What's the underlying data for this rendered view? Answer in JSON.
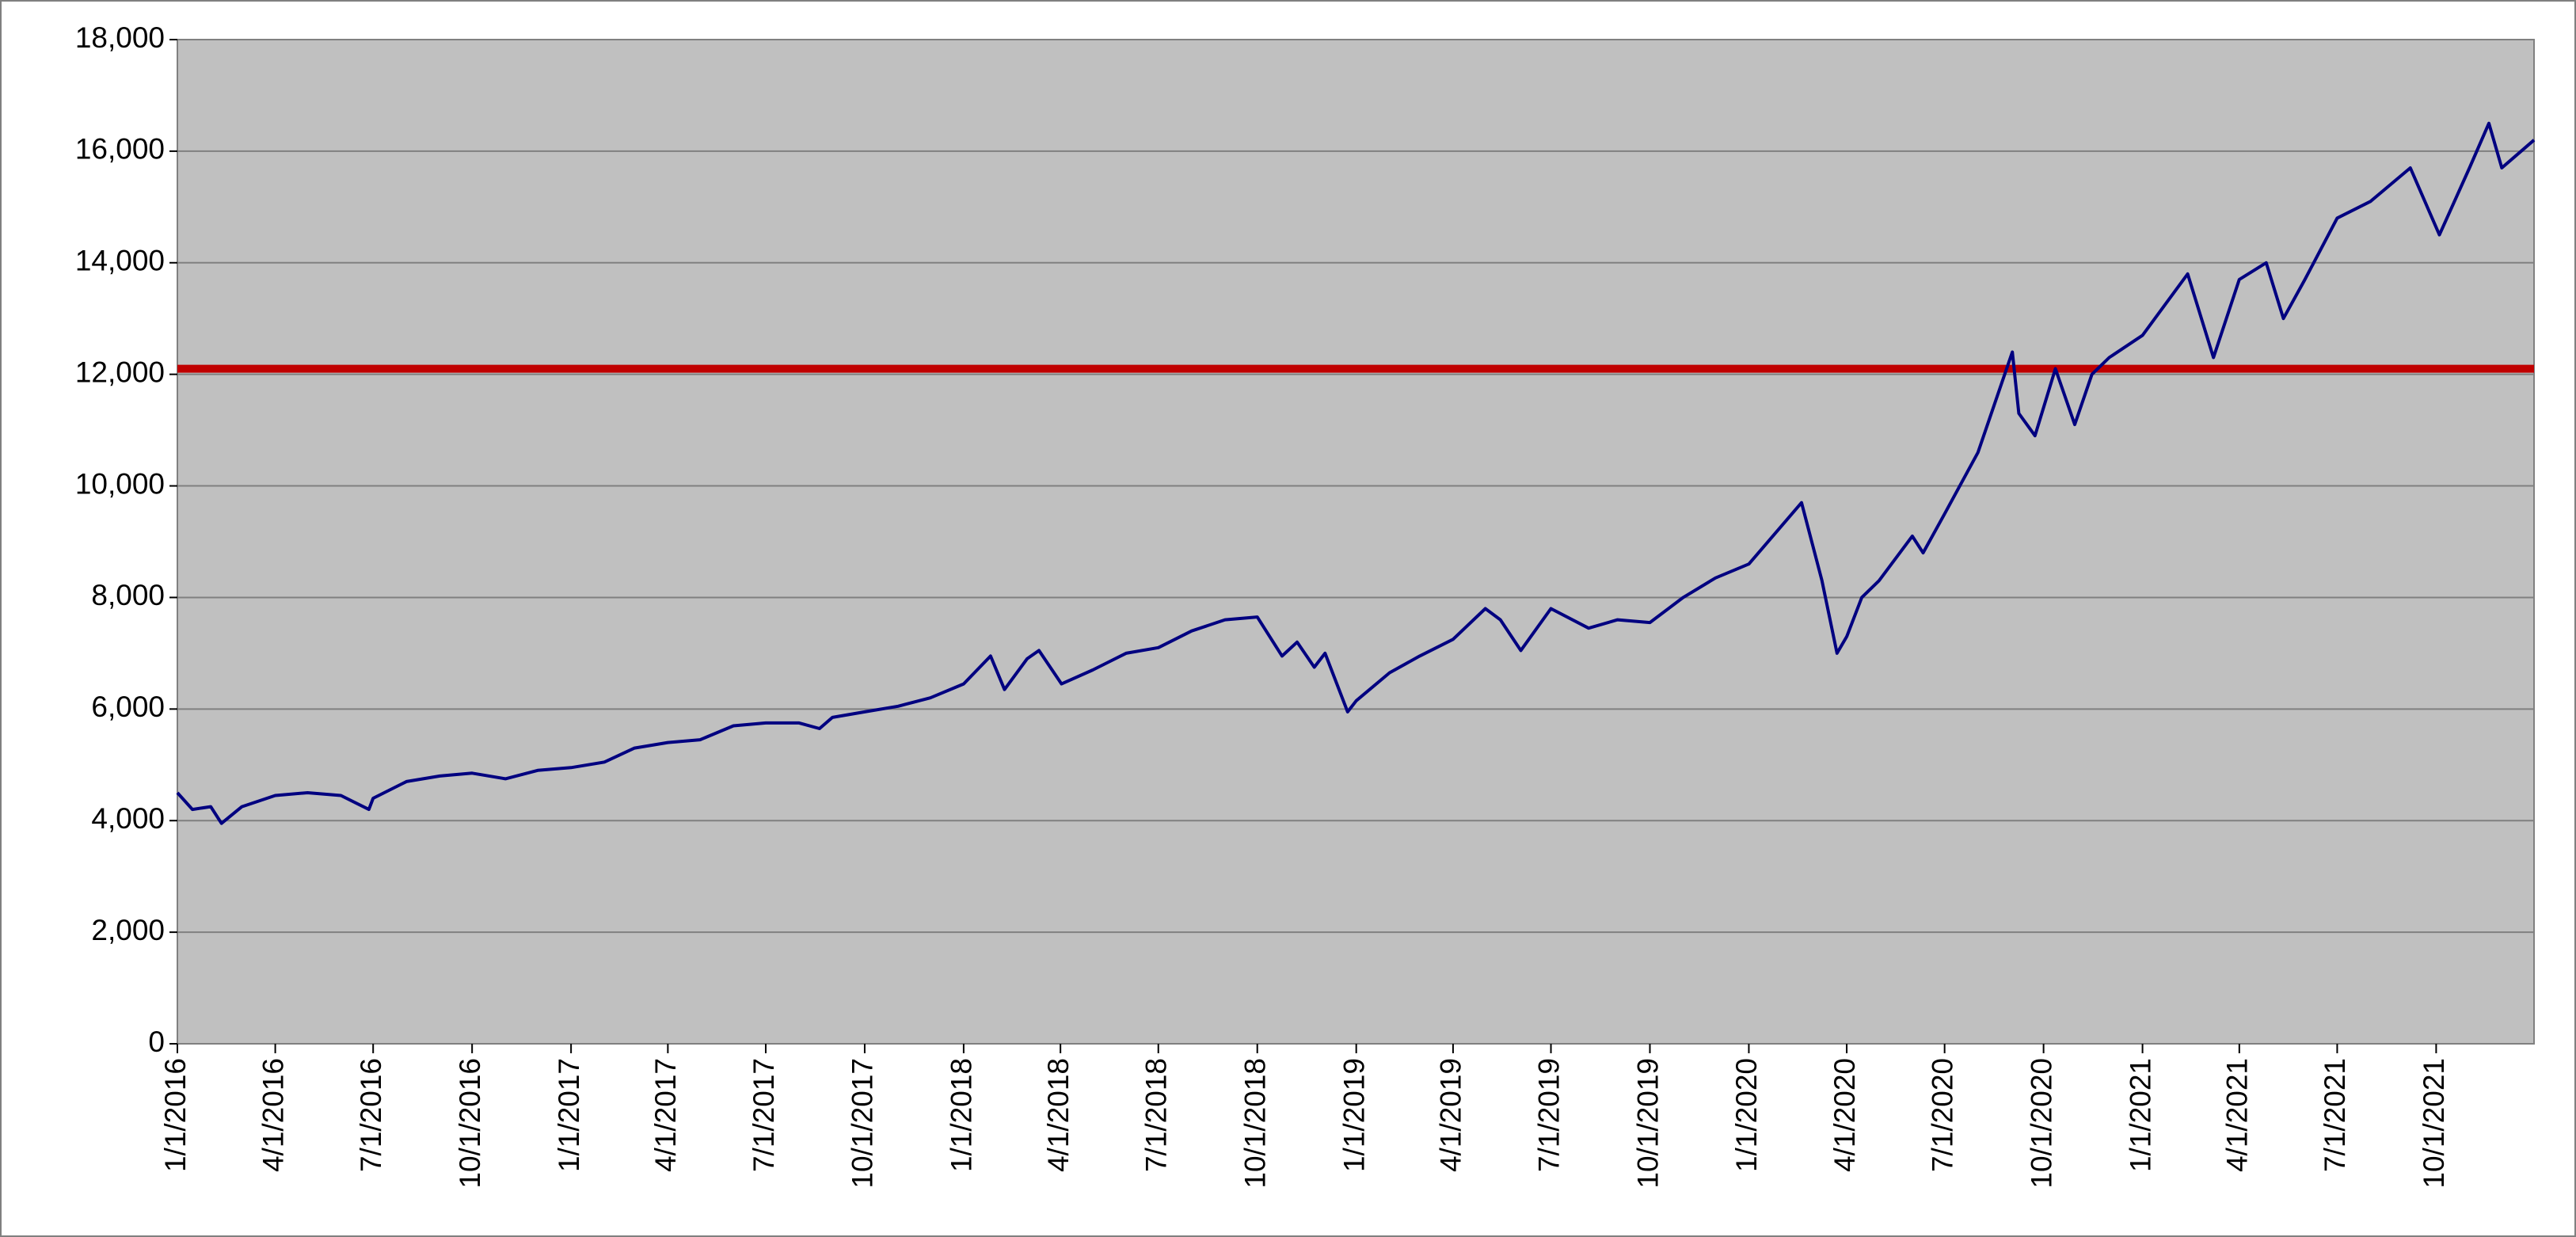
{
  "chart_data": {
    "type": "line",
    "x": [
      "1/1/2016",
      "1/15/2016",
      "2/1/2016",
      "2/11/2016",
      "3/1/2016",
      "4/1/2016",
      "5/1/2016",
      "6/1/2016",
      "6/27/2016",
      "7/1/2016",
      "8/1/2016",
      "9/1/2016",
      "10/1/2016",
      "11/1/2016",
      "12/1/2016",
      "1/1/2017",
      "2/1/2017",
      "3/1/2017",
      "4/1/2017",
      "5/1/2017",
      "6/1/2017",
      "7/1/2017",
      "8/1/2017",
      "8/20/2017",
      "9/1/2017",
      "10/1/2017",
      "11/1/2017",
      "12/1/2017",
      "1/1/2018",
      "1/26/2018",
      "2/8/2018",
      "3/1/2018",
      "3/12/2018",
      "4/2/2018",
      "5/1/2018",
      "6/1/2018",
      "7/1/2018",
      "8/1/2018",
      "9/1/2018",
      "10/1/2018",
      "10/24/2018",
      "11/7/2018",
      "11/23/2018",
      "12/3/2018",
      "12/24/2018",
      "1/1/2019",
      "2/1/2019",
      "3/1/2019",
      "4/1/2019",
      "5/1/2019",
      "5/15/2019",
      "6/3/2019",
      "7/1/2019",
      "8/5/2019",
      "9/1/2019",
      "10/1/2019",
      "11/1/2019",
      "12/1/2019",
      "1/1/2020",
      "2/19/2020",
      "3/9/2020",
      "3/23/2020",
      "4/1/2020",
      "4/15/2020",
      "5/1/2020",
      "6/1/2020",
      "6/11/2020",
      "7/1/2020",
      "8/1/2020",
      "9/2/2020",
      "9/8/2020",
      "9/23/2020",
      "10/12/2020",
      "10/30/2020",
      "11/15/2020",
      "12/1/2020",
      "1/1/2021",
      "2/12/2021",
      "3/8/2021",
      "4/1/2021",
      "4/26/2021",
      "5/12/2021",
      "6/1/2021",
      "7/1/2021",
      "8/1/2021",
      "9/7/2021",
      "10/4/2021",
      "11/1/2021",
      "11/19/2021",
      "12/1/2021",
      "12/31/2021"
    ],
    "series": [
      {
        "color": "#000080",
        "values": [
          4500,
          4200,
          4250,
          3950,
          4250,
          4450,
          4500,
          4450,
          4200,
          4400,
          4700,
          4800,
          4850,
          4750,
          4900,
          4950,
          5050,
          5300,
          5400,
          5450,
          5700,
          5750,
          5750,
          5650,
          5850,
          5950,
          6050,
          6200,
          6450,
          6950,
          6350,
          6900,
          7050,
          6450,
          6700,
          7000,
          7100,
          7400,
          7600,
          7650,
          6950,
          7200,
          6750,
          7000,
          5950,
          6150,
          6650,
          6950,
          7250,
          7800,
          7600,
          7050,
          7800,
          7450,
          7600,
          7550,
          8000,
          8350,
          8600,
          9700,
          8300,
          7000,
          7300,
          8000,
          8300,
          9100,
          8800,
          9500,
          10600,
          12400,
          11300,
          10900,
          12100,
          11100,
          12000,
          12300,
          12700,
          13800,
          12300,
          13700,
          14000,
          13000,
          13700,
          14800,
          15100,
          15700,
          14500,
          15700,
          16500,
          15700,
          16200
        ]
      }
    ],
    "xlim": [
      "1/1/2016",
      "12/31/2021"
    ],
    "xticks": [
      "1/1/2016",
      "4/1/2016",
      "7/1/2016",
      "10/1/2016",
      "1/1/2017",
      "4/1/2017",
      "7/1/2017",
      "10/1/2017",
      "1/1/2018",
      "4/1/2018",
      "7/1/2018",
      "10/1/2018",
      "1/1/2019",
      "4/1/2019",
      "7/1/2019",
      "10/1/2019",
      "1/1/2020",
      "4/1/2020",
      "7/1/2020",
      "10/1/2020",
      "1/1/2021",
      "4/1/2021",
      "7/1/2021",
      "10/1/2021"
    ],
    "ylim": [
      0,
      18000
    ],
    "yticks": [
      0,
      {
        "value": 2000,
        "label": "2,000"
      },
      {
        "value": 4000,
        "label": "4,000"
      },
      {
        "value": 6000,
        "label": "6,000"
      },
      {
        "value": 8000,
        "label": "8,000"
      },
      {
        "value": 10000,
        "label": "10,000"
      },
      {
        "value": 12000,
        "label": "12,000"
      },
      {
        "value": 14000,
        "label": "14,000"
      },
      {
        "value": 16000,
        "label": "16,000"
      },
      {
        "value": 18000,
        "label": "18,000"
      }
    ],
    "grid": true,
    "reference_line": {
      "value": 12100,
      "color": "#c00000"
    }
  }
}
